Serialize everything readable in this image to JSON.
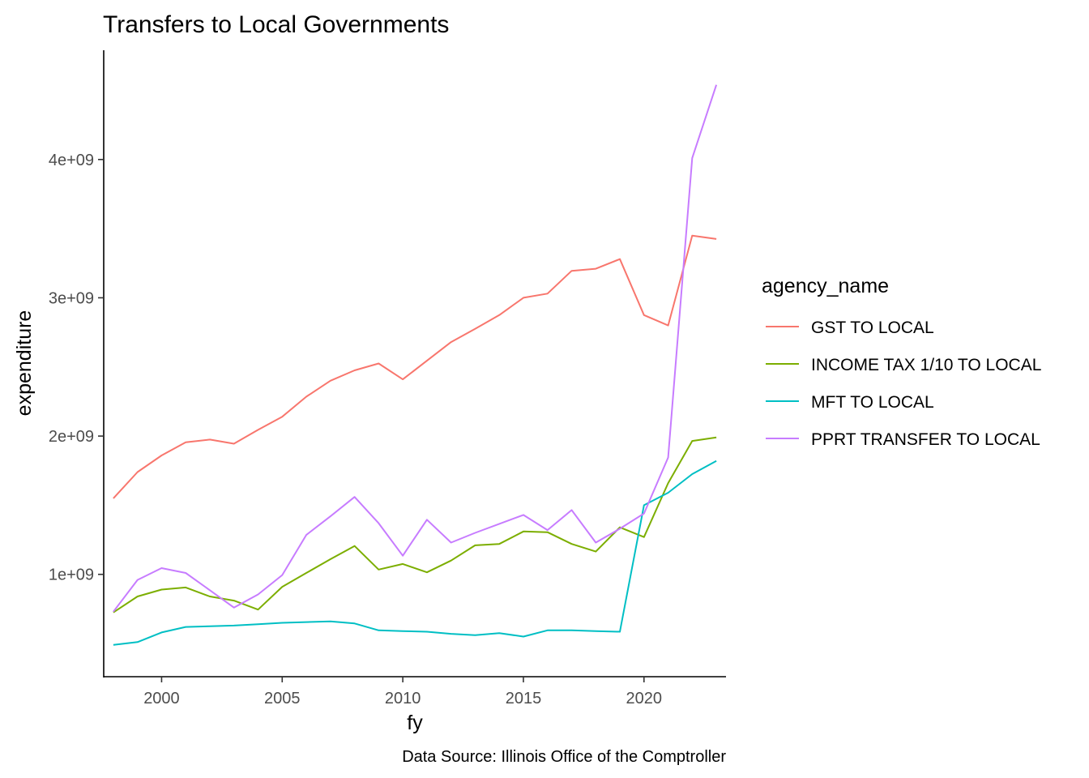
{
  "chart_data": {
    "type": "line",
    "title": "Transfers to Local Governments",
    "xlabel": "fy",
    "ylabel": "expenditure",
    "caption": "Data Source: Illinois Office of the Comptroller",
    "legend_title": "agency_name",
    "legend_position": "right",
    "grid": false,
    "xlim": [
      1997.6,
      2023.4
    ],
    "ylim": [
      260000000,
      4790000000
    ],
    "x_ticks": [
      {
        "value": 2000,
        "label": "2000"
      },
      {
        "value": 2005,
        "label": "2005"
      },
      {
        "value": 2010,
        "label": "2010"
      },
      {
        "value": 2015,
        "label": "2015"
      },
      {
        "value": 2020,
        "label": "2020"
      }
    ],
    "y_ticks": [
      {
        "value": 1000000000,
        "label": "1e+09"
      },
      {
        "value": 2000000000,
        "label": "2e+09"
      },
      {
        "value": 3000000000,
        "label": "3e+09"
      },
      {
        "value": 4000000000,
        "label": "4e+09"
      }
    ],
    "x": [
      1998,
      1999,
      2000,
      2001,
      2002,
      2003,
      2004,
      2005,
      2006,
      2007,
      2008,
      2009,
      2010,
      2011,
      2012,
      2013,
      2014,
      2015,
      2016,
      2017,
      2018,
      2019,
      2020,
      2021,
      2022,
      2023
    ],
    "series": [
      {
        "name": "GST TO LOCAL",
        "color": "#F8766D",
        "values": [
          1550000000,
          1740000000,
          1860000000,
          1955000000,
          1975000000,
          1945000000,
          2045000000,
          2140000000,
          2285000000,
          2400000000,
          2475000000,
          2525000000,
          2410000000,
          2545000000,
          2680000000,
          2775000000,
          2875000000,
          3000000000,
          3030000000,
          3195000000,
          3210000000,
          3280000000,
          2875000000,
          2800000000,
          3450000000,
          3425000000
        ]
      },
      {
        "name": "INCOME TAX 1/10 TO LOCAL",
        "color": "#7CAE00",
        "values": [
          725000000,
          840000000,
          890000000,
          905000000,
          840000000,
          810000000,
          745000000,
          910000000,
          1010000000,
          1110000000,
          1205000000,
          1035000000,
          1075000000,
          1015000000,
          1100000000,
          1210000000,
          1220000000,
          1310000000,
          1305000000,
          1220000000,
          1165000000,
          1340000000,
          1270000000,
          1660000000,
          1965000000,
          1990000000
        ]
      },
      {
        "name": "MFT TO LOCAL",
        "color": "#00BFC4",
        "values": [
          490000000,
          510000000,
          580000000,
          620000000,
          625000000,
          630000000,
          640000000,
          650000000,
          655000000,
          660000000,
          645000000,
          595000000,
          590000000,
          585000000,
          570000000,
          560000000,
          575000000,
          550000000,
          595000000,
          595000000,
          590000000,
          585000000,
          1500000000,
          1590000000,
          1725000000,
          1820000000
        ]
      },
      {
        "name": "PPRT TRANSFER TO LOCAL",
        "color": "#C77CFF",
        "values": [
          730000000,
          960000000,
          1045000000,
          1010000000,
          885000000,
          760000000,
          855000000,
          995000000,
          1285000000,
          1420000000,
          1560000000,
          1370000000,
          1135000000,
          1395000000,
          1230000000,
          1300000000,
          1365000000,
          1430000000,
          1320000000,
          1465000000,
          1230000000,
          1330000000,
          1440000000,
          1845000000,
          4010000000,
          4540000000
        ]
      }
    ]
  }
}
